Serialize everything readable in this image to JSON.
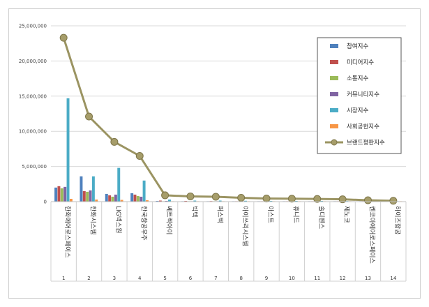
{
  "chart_data": {
    "type": "bar",
    "title": "",
    "xlabel": "",
    "ylabel": "",
    "ylim": [
      0,
      25000000
    ],
    "y_ticks": [
      "0",
      "5,000,000",
      "10,000,000",
      "15,000,000",
      "20,000,000",
      "25,000,000"
    ],
    "grid": true,
    "legend_position": "top-right",
    "indices": [
      "1",
      "2",
      "3",
      "4",
      "5",
      "6",
      "7",
      "8",
      "9",
      "10",
      "11",
      "12",
      "13",
      "14"
    ],
    "categories": [
      "한화에어로스페이스",
      "한화시스템",
      "LIG넥스원",
      "한국항공우주",
      "쎄트렉아이",
      "빅텍",
      "퍼스텍",
      "아이쓰리시스템",
      "아스트",
      "휴니드",
      "솔디펜스",
      "제노코",
      "켄코아에어로스페이스",
      "하이즈항공"
    ],
    "series": [
      {
        "name": "참여지수",
        "kind": "bar",
        "color": "#4f81bd",
        "values": [
          2000000,
          3600000,
          1100000,
          1200000,
          100000,
          60000,
          60000,
          50000,
          40000,
          40000,
          40000,
          30000,
          30000,
          20000
        ]
      },
      {
        "name": "미디어지수",
        "kind": "bar",
        "color": "#c0504d",
        "values": [
          2200000,
          1500000,
          900000,
          1000000,
          150000,
          100000,
          80000,
          60000,
          50000,
          50000,
          40000,
          40000,
          30000,
          20000
        ]
      },
      {
        "name": "소통지수",
        "kind": "bar",
        "color": "#9bbb59",
        "values": [
          1900000,
          1400000,
          700000,
          800000,
          50000,
          30000,
          30000,
          20000,
          20000,
          20000,
          20000,
          10000,
          10000,
          10000
        ]
      },
      {
        "name": "커뮤니티지수",
        "kind": "bar",
        "color": "#8064a2",
        "values": [
          2100000,
          1600000,
          1000000,
          700000,
          100000,
          50000,
          50000,
          40000,
          30000,
          30000,
          30000,
          20000,
          20000,
          10000
        ]
      },
      {
        "name": "시장지수",
        "kind": "bar",
        "color": "#4bacc6",
        "values": [
          14700000,
          3600000,
          4800000,
          3000000,
          300000,
          150000,
          150000,
          120000,
          100000,
          100000,
          100000,
          80000,
          80000,
          50000
        ]
      },
      {
        "name": "사회공헌지수",
        "kind": "bar",
        "color": "#f79646",
        "values": [
          400000,
          300000,
          250000,
          200000,
          20000,
          10000,
          10000,
          10000,
          10000,
          10000,
          10000,
          10000,
          10000,
          10000
        ]
      },
      {
        "name": "브랜드평판지수",
        "kind": "line",
        "color": "#9b9462",
        "values": [
          23300000,
          12100000,
          8500000,
          6500000,
          900000,
          750000,
          700000,
          550000,
          450000,
          420000,
          380000,
          330000,
          200000,
          120000
        ]
      }
    ]
  }
}
